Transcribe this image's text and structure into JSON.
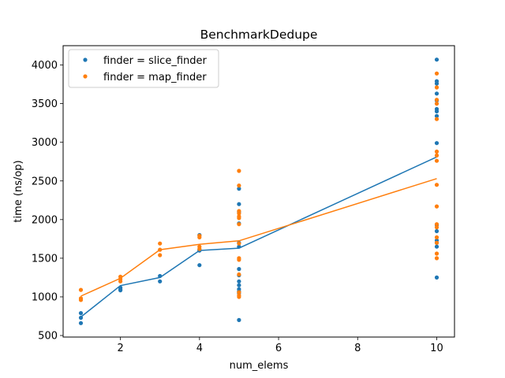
{
  "chart_data": {
    "type": "scatter",
    "title": "BenchmarkDedupe",
    "xlabel": "num_elems",
    "ylabel": "time (ns/op)",
    "xlim": [
      0.55,
      10.45
    ],
    "ylim": [
      480,
      4250
    ],
    "xticks": [
      2,
      4,
      6,
      8,
      10
    ],
    "yticks": [
      500,
      1000,
      1500,
      2000,
      2500,
      3000,
      3500,
      4000
    ],
    "grid": false,
    "legend_position": "top-left",
    "series": [
      {
        "name": "finder = slice_finder",
        "color": "#1f77b4",
        "points": [
          [
            1,
            660
          ],
          [
            1,
            730
          ],
          [
            1,
            790
          ],
          [
            2,
            1085
          ],
          [
            2,
            1100
          ],
          [
            2,
            1120
          ],
          [
            3,
            1200
          ],
          [
            3,
            1270
          ],
          [
            4,
            1410
          ],
          [
            4,
            1600
          ],
          [
            4,
            1605
          ],
          [
            4,
            1800
          ],
          [
            5,
            700
          ],
          [
            5,
            1050
          ],
          [
            5,
            1070
          ],
          [
            5,
            1100
          ],
          [
            5,
            1150
          ],
          [
            5,
            1200
          ],
          [
            5,
            1280
          ],
          [
            5,
            1360
          ],
          [
            5,
            1650
          ],
          [
            5,
            1700
          ],
          [
            5,
            1950
          ],
          [
            5,
            2100
          ],
          [
            5,
            2200
          ],
          [
            5,
            2400
          ],
          [
            10,
            1250
          ],
          [
            10,
            1650
          ],
          [
            10,
            1700
          ],
          [
            10,
            1730
          ],
          [
            10,
            1850
          ],
          [
            10,
            1930
          ],
          [
            10,
            2990
          ],
          [
            10,
            3340
          ],
          [
            10,
            3400
          ],
          [
            10,
            3430
          ],
          [
            10,
            3540
          ],
          [
            10,
            3630
          ],
          [
            10,
            3760
          ],
          [
            10,
            3790
          ],
          [
            10,
            4070
          ]
        ],
        "mean_line": [
          [
            1,
            740
          ],
          [
            2,
            1145
          ],
          [
            3,
            1250
          ],
          [
            4,
            1600
          ],
          [
            5,
            1630
          ],
          [
            10,
            2810
          ]
        ]
      },
      {
        "name": "finder = map_finder",
        "color": "#ff7f0e",
        "points": [
          [
            1,
            960
          ],
          [
            1,
            980
          ],
          [
            1,
            1090
          ],
          [
            2,
            1200
          ],
          [
            2,
            1230
          ],
          [
            2,
            1260
          ],
          [
            3,
            1540
          ],
          [
            3,
            1610
          ],
          [
            3,
            1690
          ],
          [
            4,
            1620
          ],
          [
            4,
            1650
          ],
          [
            4,
            1770
          ],
          [
            4,
            1790
          ],
          [
            5,
            1000
          ],
          [
            5,
            1020
          ],
          [
            5,
            1060
          ],
          [
            5,
            1290
          ],
          [
            5,
            1480
          ],
          [
            5,
            1500
          ],
          [
            5,
            1690
          ],
          [
            5,
            1940
          ],
          [
            5,
            2020
          ],
          [
            5,
            2040
          ],
          [
            5,
            2080
          ],
          [
            5,
            2110
          ],
          [
            5,
            2440
          ],
          [
            5,
            2630
          ],
          [
            10,
            1500
          ],
          [
            10,
            1560
          ],
          [
            10,
            1700
          ],
          [
            10,
            1770
          ],
          [
            10,
            1900
          ],
          [
            10,
            1940
          ],
          [
            10,
            2170
          ],
          [
            10,
            2450
          ],
          [
            10,
            2760
          ],
          [
            10,
            2830
          ],
          [
            10,
            2880
          ],
          [
            10,
            3300
          ],
          [
            10,
            3500
          ],
          [
            10,
            3550
          ],
          [
            10,
            3710
          ],
          [
            10,
            3890
          ]
        ],
        "mean_line": [
          [
            1,
            1010
          ],
          [
            2,
            1240
          ],
          [
            3,
            1610
          ],
          [
            4,
            1680
          ],
          [
            5,
            1725
          ],
          [
            10,
            2530
          ]
        ]
      }
    ]
  }
}
